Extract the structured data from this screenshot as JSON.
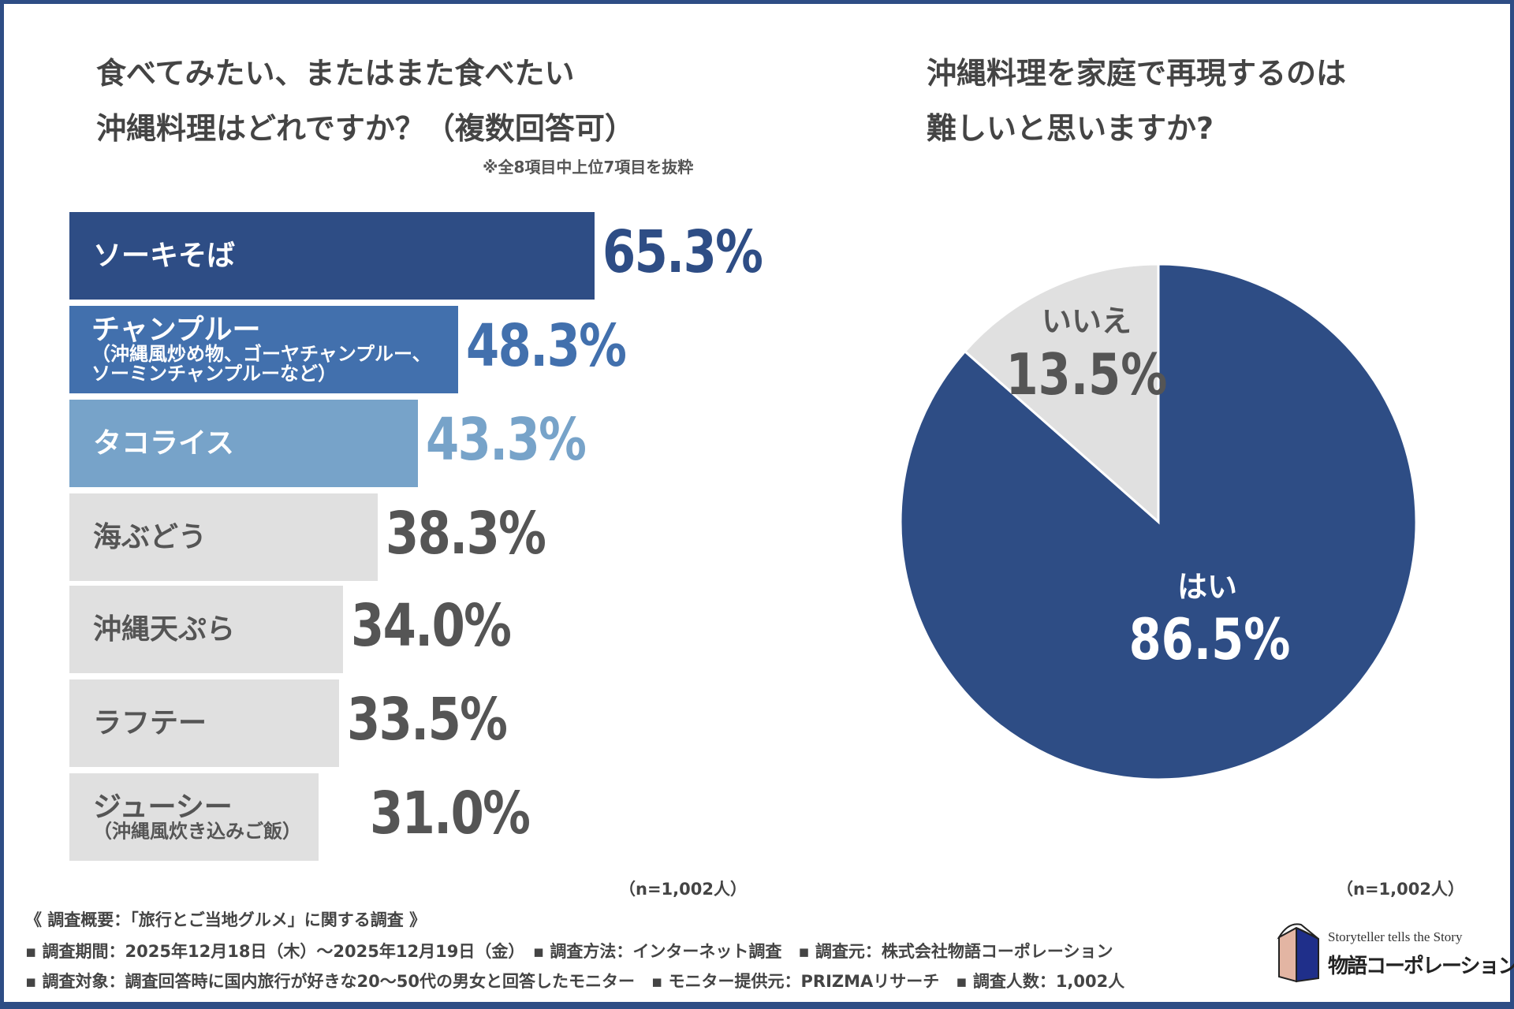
{
  "left": {
    "title_line1": "食べてみたい、またはまた食べたい",
    "title_line2": "沖縄料理はどれですか？（複数回答可）",
    "note": "※全8項目中上位7項目を抜粋",
    "n": "（n=1,002人）"
  },
  "right": {
    "title_line1": "沖縄料理を家庭で再現するのは",
    "title_line2": "難しいと思いますか?",
    "n": "（n=1,002人）"
  },
  "chart_data": [
    {
      "type": "bar",
      "orientation": "horizontal",
      "title": "食べてみたい、またはまた食べたい沖縄料理はどれですか？（複数回答可）",
      "categories": [
        "ソーキそば",
        "チャンプルー（沖縄風炒め物、ゴーヤチャンプルー、ソーミンチャンプルーなど）",
        "タコライス",
        "海ぶどう",
        "沖縄天ぷら",
        "ラフテー",
        "ジューシー（沖縄風炊き込みご飯）"
      ],
      "labels": [
        {
          "main": "ソーキそば",
          "sub": ""
        },
        {
          "main": "チャンプルー",
          "sub": "（沖縄風炒め物、ゴーヤチャンプルー、",
          "sub2": "ソーミンチャンプルーなど）"
        },
        {
          "main": "タコライス",
          "sub": ""
        },
        {
          "main": "海ぶどう",
          "sub": ""
        },
        {
          "main": "沖縄天ぷら",
          "sub": ""
        },
        {
          "main": "ラフテー",
          "sub": ""
        },
        {
          "main": "ジューシー",
          "sub": "（沖縄風炊き込みご飯）"
        }
      ],
      "values": [
        65.3,
        48.3,
        43.3,
        38.3,
        34.0,
        33.5,
        31.0
      ],
      "value_labels": [
        "65.3%",
        "48.3%",
        "43.3%",
        "38.3%",
        "34.0%",
        "33.5%",
        "31.0%"
      ],
      "colors": [
        "#2e4d85",
        "#4270ad",
        "#77a3c9",
        "#e0e0e0",
        "#e0e0e0",
        "#e0e0e0",
        "#e0e0e0"
      ],
      "value_colors": [
        "#2e4d85",
        "#4270ad",
        "#77a3c9",
        "#555555",
        "#555555",
        "#555555",
        "#555555"
      ],
      "label_colors": [
        "#ffffff",
        "#ffffff",
        "#ffffff",
        "#555555",
        "#555555",
        "#555555",
        "#555555"
      ]
    },
    {
      "type": "pie",
      "title": "沖縄料理を家庭で再現するのは難しいと思いますか?",
      "slices": [
        {
          "label": "はい",
          "value": 86.5,
          "text": "86.5%",
          "color": "#2e4d85"
        },
        {
          "label": "いいえ",
          "value": 13.5,
          "text": "13.5%",
          "color": "#e0e0e0"
        }
      ]
    }
  ],
  "footer": {
    "heading": "《 調査概要：「旅行とご当地グルメ」に関する調査 》",
    "line2": "▪ 調査期間：2025年12月18日（木）～2025年12月19日（金）　▪ 調査方法：インターネット調査　▪ 調査元：株式会社物語コーポレーション",
    "line3": "▪ 調査対象：調査回答時に国内旅行が好きな20～50代の男女と回答したモニター　▪ モニター提供元：PRIZMAリサーチ　▪ 調査人数：1,002人"
  },
  "logo": {
    "tagline": "Storyteller tells the Story",
    "name": "物語コーポレーション"
  }
}
